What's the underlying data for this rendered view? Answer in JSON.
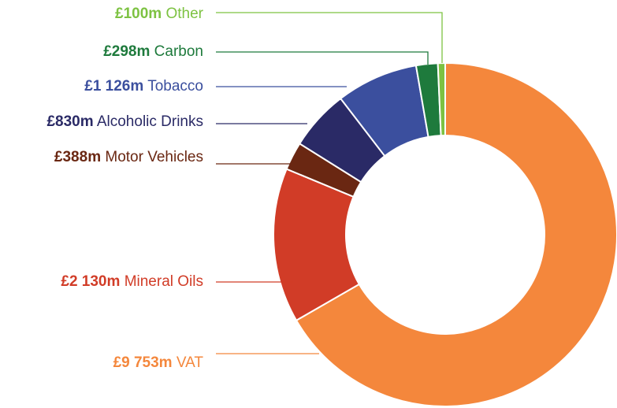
{
  "chart_data": {
    "type": "donut",
    "categories": [
      "VAT",
      "Mineral Oils",
      "Motor Vehicles",
      "Alcoholic Drinks",
      "Tobacco",
      "Carbon",
      "Other"
    ],
    "values": [
      9753,
      2130,
      388,
      830,
      1126,
      298,
      100
    ],
    "value_labels": [
      "£9 753m",
      "£2 130m",
      "£388m",
      "£830m",
      "£1 126m",
      "£298m",
      "£100m"
    ],
    "colors": [
      "#f4873c",
      "#d13c27",
      "#6a2712",
      "#2a2a66",
      "#3b4f9e",
      "#1e7a3c",
      "#7dc242"
    ]
  }
}
